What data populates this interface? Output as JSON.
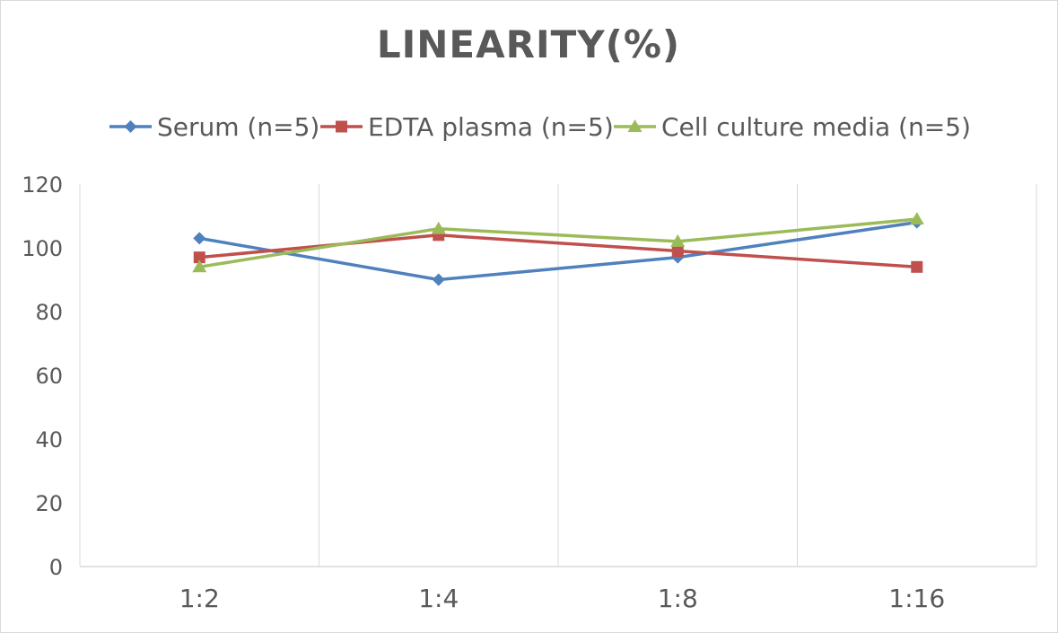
{
  "chart_data": {
    "type": "line",
    "title": "LINEARITY(%)",
    "xlabel": "",
    "ylabel": "",
    "categories": [
      "1:2",
      "1:4",
      "1:8",
      "1:16"
    ],
    "ylim": [
      0,
      120
    ],
    "yticks": [
      0,
      20,
      40,
      60,
      80,
      100,
      120
    ],
    "grid": "vertical",
    "legend_position": "top",
    "series": [
      {
        "name": "Serum (n=5)",
        "values": [
          103,
          90,
          97,
          108
        ],
        "color": "#4f81bd",
        "marker": "diamond"
      },
      {
        "name": "EDTA plasma (n=5)",
        "values": [
          97,
          104,
          99,
          94
        ],
        "color": "#c0504d",
        "marker": "square"
      },
      {
        "name": "Cell culture media (n=5)",
        "values": [
          94,
          106,
          102,
          109
        ],
        "color": "#9bbb59",
        "marker": "triangle"
      }
    ]
  }
}
